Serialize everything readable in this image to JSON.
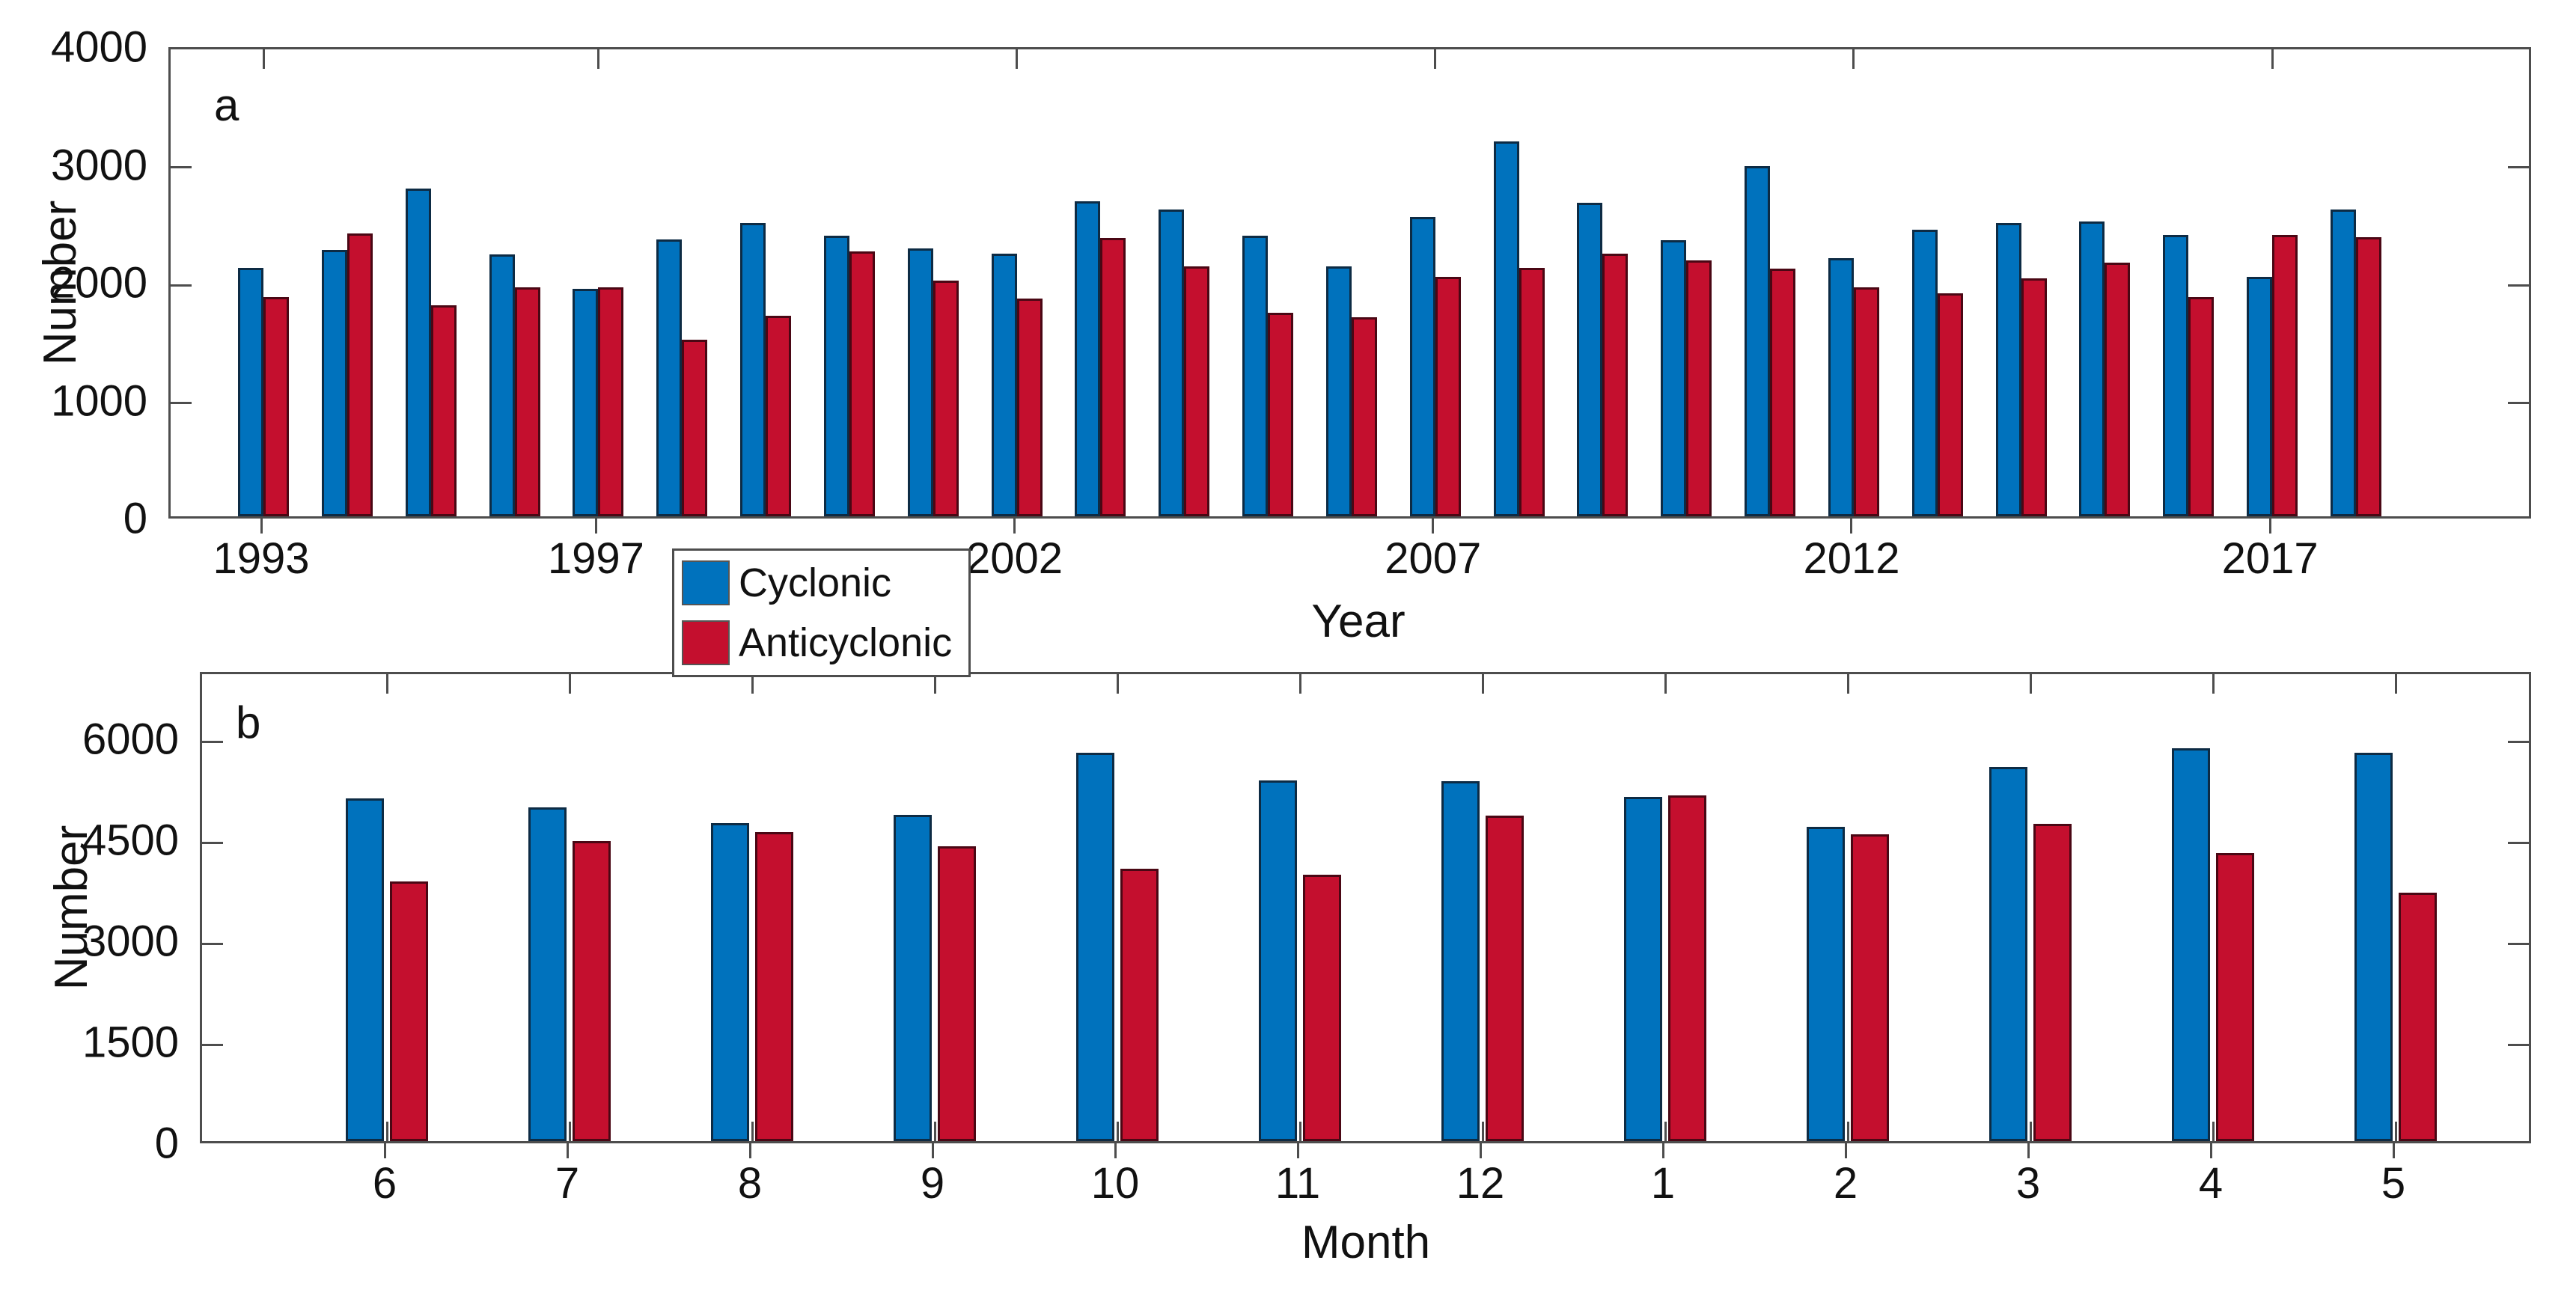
{
  "figure": {
    "background": "#ffffff",
    "axis_color": "#4d4d4d",
    "text_color": "#111111"
  },
  "legend": {
    "position": "between-panels-left",
    "entries": [
      {
        "label": "Cyclonic",
        "color": "#0072BD"
      },
      {
        "label": "Anticyclonic",
        "color": "#C40F2E"
      }
    ]
  },
  "chart_data": [
    {
      "id": "a",
      "type": "bar",
      "panel_label": "a",
      "title": "",
      "xlabel": "Year",
      "ylabel": "Number",
      "ylim": [
        0,
        4000
      ],
      "yticks": [
        0,
        1000,
        2000,
        3000,
        4000
      ],
      "grid": false,
      "legend_position": "below-plot-left",
      "categories": [
        "1993",
        "1994",
        "1995",
        "1996",
        "1997",
        "1998",
        "1999",
        "2000",
        "2001",
        "2002",
        "2003",
        "2004",
        "2005",
        "2006",
        "2007",
        "2008",
        "2009",
        "2010",
        "2011",
        "2012",
        "2013",
        "2014",
        "2015",
        "2016",
        "2017",
        "2018"
      ],
      "labeled_categories": [
        "1993",
        "1997",
        "2002",
        "2007",
        "2012",
        "2017"
      ],
      "series": [
        {
          "name": "Cyclonic",
          "color": "#0072BD",
          "edge": "#0d2b44",
          "values": [
            2110,
            2260,
            2780,
            2220,
            1930,
            2350,
            2490,
            2380,
            2270,
            2230,
            2670,
            2600,
            2380,
            2120,
            2540,
            3180,
            2660,
            2340,
            2970,
            2190,
            2430,
            2490,
            2500,
            2390,
            2030,
            2600
          ]
        },
        {
          "name": "Anticyclonic",
          "color": "#C40F2E",
          "edge": "#4a0714",
          "values": [
            1860,
            2400,
            1790,
            1940,
            1940,
            1500,
            1700,
            2250,
            2000,
            1850,
            2360,
            2120,
            1730,
            1690,
            2030,
            2110,
            2230,
            2170,
            2100,
            1940,
            1890,
            2020,
            2150,
            1860,
            2390,
            2370
          ]
        }
      ]
    },
    {
      "id": "b",
      "type": "bar",
      "panel_label": "b",
      "title": "",
      "xlabel": "Month",
      "ylabel": "Number",
      "ylim": [
        0,
        7000
      ],
      "yticks": [
        0,
        1500,
        3000,
        4500,
        6000
      ],
      "grid": false,
      "categories": [
        "6",
        "7",
        "8",
        "9",
        "10",
        "11",
        "12",
        "1",
        "2",
        "3",
        "4",
        "5"
      ],
      "labeled_categories": [
        "6",
        "7",
        "8",
        "9",
        "10",
        "11",
        "12",
        "1",
        "2",
        "3",
        "4",
        "5"
      ],
      "series": [
        {
          "name": "Cyclonic",
          "color": "#0072BD",
          "edge": "#0d2b44",
          "values": [
            5090,
            4950,
            4720,
            4840,
            5770,
            5360,
            5340,
            5110,
            4670,
            5560,
            5830,
            5770
          ]
        },
        {
          "name": "Anticyclonic",
          "color": "#C40F2E",
          "edge": "#4a0714",
          "values": [
            3860,
            4450,
            4590,
            4380,
            4040,
            3960,
            4830,
            5130,
            4550,
            4710,
            4280,
            3690
          ]
        }
      ]
    }
  ]
}
